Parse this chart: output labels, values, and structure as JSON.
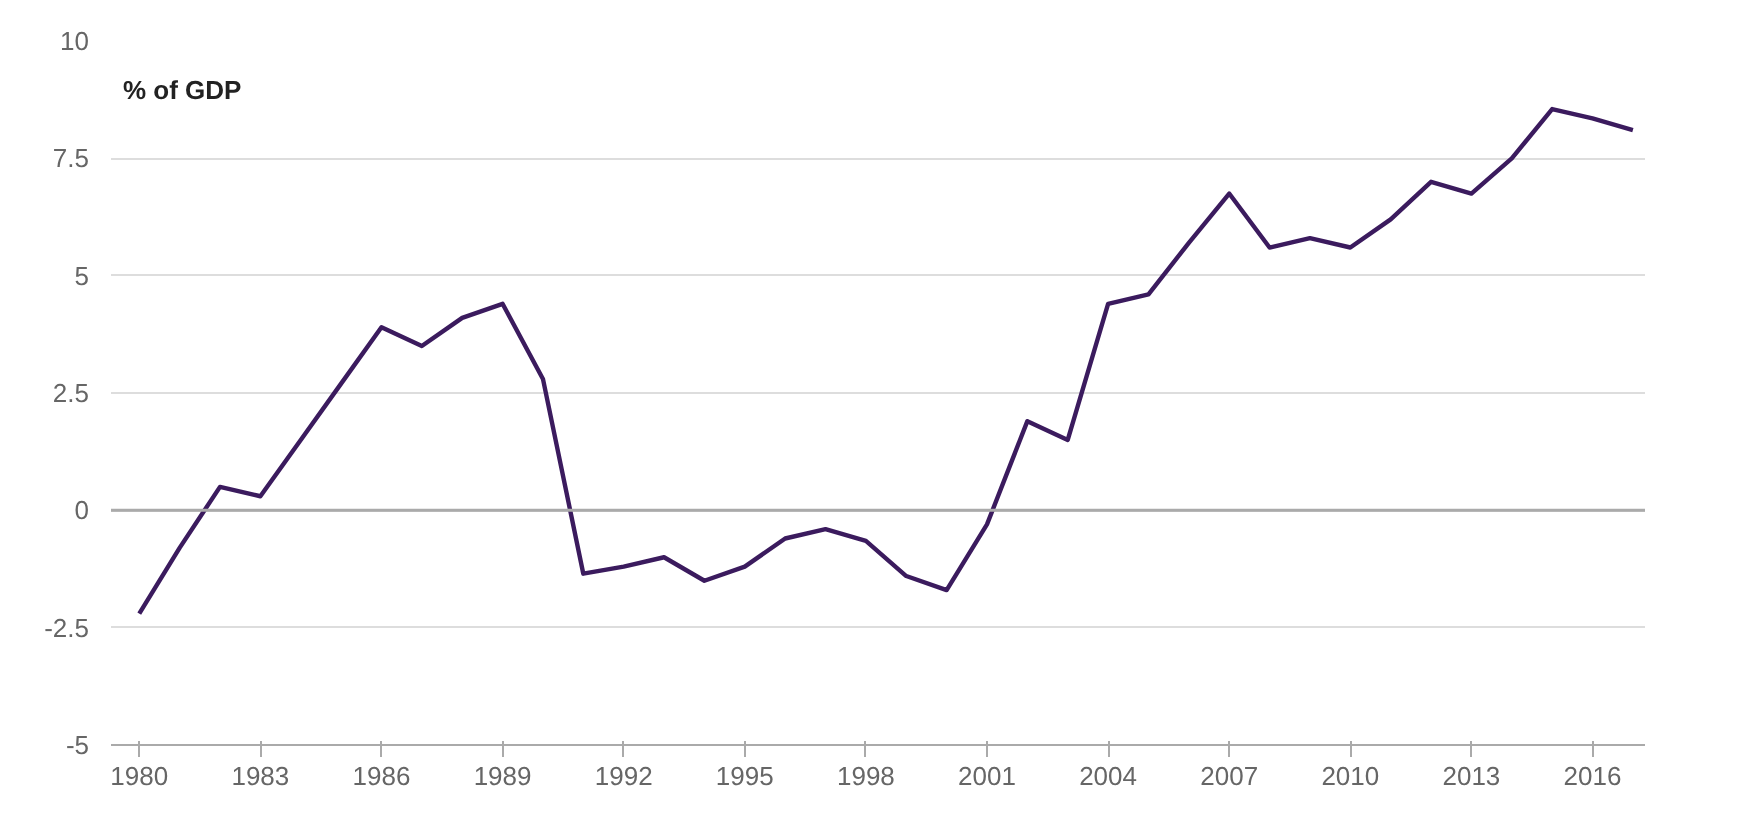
{
  "chart_data": {
    "type": "line",
    "ylabel": "% of GDP",
    "x": [
      1980,
      1981,
      1982,
      1983,
      1984,
      1985,
      1986,
      1987,
      1988,
      1989,
      1990,
      1991,
      1992,
      1993,
      1994,
      1995,
      1996,
      1997,
      1998,
      1999,
      2000,
      2001,
      2002,
      2003,
      2004,
      2005,
      2006,
      2007,
      2008,
      2009,
      2010,
      2011,
      2012,
      2013,
      2014,
      2015,
      2016,
      2017
    ],
    "series": [
      {
        "color": "#3b1b5e",
        "values": [
          -2.2,
          -0.8,
          0.5,
          0.3,
          1.5,
          2.7,
          3.9,
          3.5,
          4.1,
          4.4,
          2.8,
          -1.35,
          -1.2,
          -1.0,
          -1.5,
          -1.2,
          -0.6,
          -0.4,
          -0.65,
          -1.4,
          -1.7,
          -0.3,
          1.9,
          1.5,
          4.4,
          4.6,
          5.7,
          6.75,
          5.6,
          5.8,
          5.6,
          6.2,
          7.0,
          6.75,
          7.5,
          8.55,
          8.35,
          8.1
        ]
      }
    ],
    "xlim": [
      1979.3,
      2017.3
    ],
    "ylim": [
      -5,
      10
    ],
    "xticks": [
      1980,
      1983,
      1986,
      1989,
      1992,
      1995,
      1998,
      2001,
      2004,
      2007,
      2010,
      2013,
      2016
    ],
    "yticks": [
      -5,
      -2.5,
      0,
      2.5,
      5,
      7.5,
      10
    ],
    "ref_lines": [
      {
        "axis": "y",
        "value": 0,
        "color": "#aaaaaa"
      }
    ],
    "grid": "y",
    "marker": "none",
    "line_style": "solid"
  }
}
